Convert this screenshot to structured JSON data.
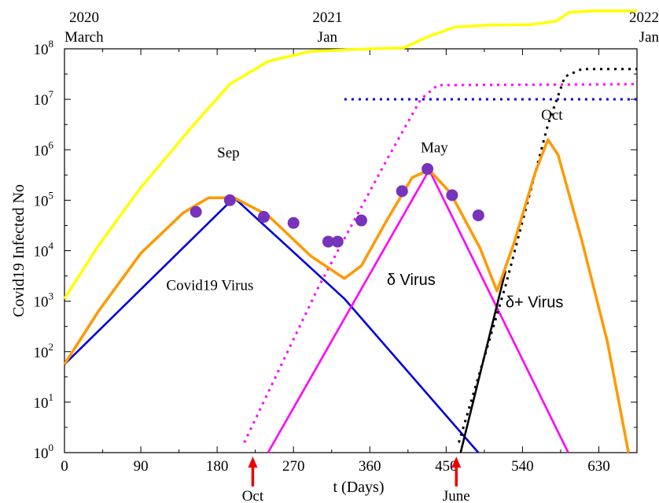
{
  "chart_data": {
    "type": "line",
    "xlabel": "t (Days)",
    "ylabel": "Covid19  Infected  No",
    "xlim": [
      0,
      675
    ],
    "ylim_log10": [
      0,
      8
    ],
    "log_y": true,
    "x_ticks": [
      0,
      90,
      180,
      270,
      360,
      450,
      540,
      630
    ],
    "y_tick_exponents": [
      0,
      1,
      2,
      3,
      4,
      5,
      6,
      7,
      8
    ],
    "y_tick_base": "10",
    "grid": false,
    "top_labels": [
      {
        "x": 0,
        "line1": "2020",
        "line2": "March"
      },
      {
        "x": 310,
        "line1": "2021",
        "line2": "Jan"
      },
      {
        "x": 675,
        "line1": "2022",
        "line2": "Jan"
      }
    ],
    "arrows": [
      {
        "x": 222,
        "label": "Oct"
      },
      {
        "x": 462,
        "label": "June"
      }
    ],
    "annotations": [
      {
        "x": 180,
        "y": 5.85,
        "text": "Sep",
        "style": "serif"
      },
      {
        "x": 420,
        "y": 5.95,
        "text": "May",
        "style": "serif"
      },
      {
        "x": 562,
        "y": 6.6,
        "text": "Oct",
        "style": "serif"
      },
      {
        "x": 120,
        "y": 3.22,
        "text": "Covid19 Virus",
        "style": "serif"
      },
      {
        "x": 380,
        "y": 3.32,
        "text": "δ Virus",
        "style": "sans"
      },
      {
        "x": 520,
        "y": 2.88,
        "text": "δ+ Virus",
        "style": "sans"
      }
    ],
    "series": [
      {
        "color": "#0000dd",
        "style": "solid",
        "points": [
          [
            0,
            1.75
          ],
          [
            200,
            5.05
          ],
          [
            330,
            3.05
          ],
          [
            488,
            0
          ]
        ]
      },
      {
        "color": "#ff00ff",
        "style": "solid",
        "points": [
          [
            240,
            0
          ],
          [
            430,
            5.6
          ],
          [
            594,
            0
          ]
        ]
      },
      {
        "color": "#000000",
        "style": "solid",
        "points": [
          [
            467,
            0
          ],
          [
            520,
            3.6
          ]
        ]
      },
      {
        "color": "#0000dd",
        "style": "dotted",
        "points": [
          [
            330,
            7.0
          ],
          [
            675,
            7.0
          ]
        ]
      },
      {
        "color": "#ff00ff",
        "style": "dotted",
        "points": [
          [
            212,
            0.2
          ],
          [
            300,
            3.3
          ],
          [
            380,
            5.8
          ],
          [
            420,
            7.0
          ],
          [
            440,
            7.28
          ],
          [
            675,
            7.3
          ]
        ]
      },
      {
        "color": "#000000",
        "style": "dotted",
        "points": [
          [
            465,
            0.2
          ],
          [
            520,
            3.3
          ],
          [
            570,
            6.5
          ],
          [
            590,
            7.45
          ],
          [
            610,
            7.6
          ],
          [
            675,
            7.6
          ]
        ]
      },
      {
        "color": "#ffff00",
        "style": "solid",
        "width": 3.5,
        "points": [
          [
            0,
            3.05
          ],
          [
            40,
            4.1
          ],
          [
            90,
            5.25
          ],
          [
            150,
            6.45
          ],
          [
            195,
            7.3
          ],
          [
            240,
            7.75
          ],
          [
            290,
            7.95
          ],
          [
            360,
            8.0
          ],
          [
            400,
            8.02
          ],
          [
            430,
            8.25
          ],
          [
            460,
            8.43
          ],
          [
            500,
            8.47
          ],
          [
            550,
            8.48
          ],
          [
            580,
            8.55
          ],
          [
            595,
            8.72
          ],
          [
            620,
            8.75
          ],
          [
            675,
            8.75
          ]
        ]
      },
      {
        "color": "#ff9900",
        "style": "solid",
        "width": 3.5,
        "points": [
          [
            0,
            1.75
          ],
          [
            40,
            2.8
          ],
          [
            90,
            3.95
          ],
          [
            140,
            4.75
          ],
          [
            170,
            5.05
          ],
          [
            200,
            5.05
          ],
          [
            240,
            4.7
          ],
          [
            290,
            3.9
          ],
          [
            330,
            3.45
          ],
          [
            350,
            3.7
          ],
          [
            380,
            4.6
          ],
          [
            410,
            5.45
          ],
          [
            430,
            5.6
          ],
          [
            455,
            5.15
          ],
          [
            490,
            4.05
          ],
          [
            510,
            3.2
          ],
          [
            530,
            4.15
          ],
          [
            555,
            5.55
          ],
          [
            570,
            6.2
          ],
          [
            582,
            5.9
          ],
          [
            610,
            4.2
          ],
          [
            640,
            2.2
          ],
          [
            665,
            0
          ]
        ]
      }
    ],
    "scatter": {
      "color": "#7733bb",
      "x": [
        155,
        195,
        235,
        270,
        311,
        322,
        350,
        398,
        428,
        457,
        488
      ],
      "y": [
        4.77,
        5.0,
        4.67,
        4.55,
        4.18,
        4.18,
        4.6,
        5.18,
        5.62,
        5.1,
        4.7
      ]
    }
  }
}
